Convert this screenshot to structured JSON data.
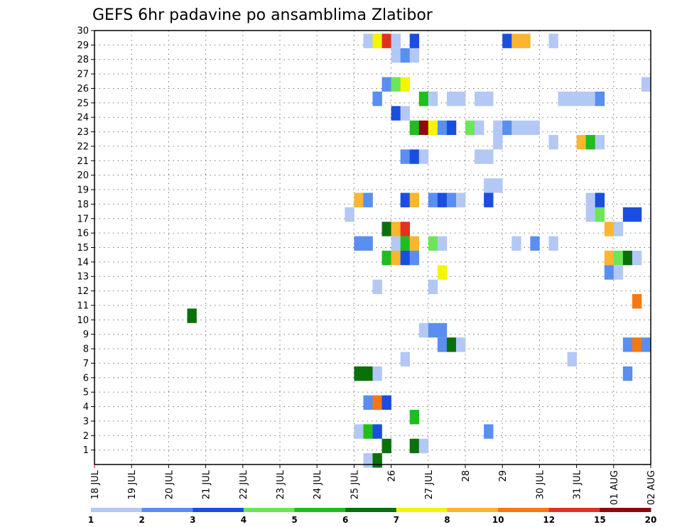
{
  "chart_data": {
    "type": "heatmap",
    "title": "GEFS 6hr padavine po ansamblima Zlatibor",
    "x_tick_labels": [
      "18 JUL",
      "19 JUL",
      "20 JUL",
      "21 JUL",
      "22 JUL",
      "23 JUL",
      "24 JUL",
      "25 JUL",
      "26",
      "27 JUL",
      "28",
      "29",
      "30 JUL",
      "31 JUL",
      "01 AUG",
      "02 AUG"
    ],
    "y_tick_labels": [
      "1",
      "2",
      "3",
      "4",
      "5",
      "6",
      "7",
      "8",
      "9",
      "10",
      "11",
      "12",
      "13",
      "14",
      "15",
      "16",
      "17",
      "18",
      "19",
      "20",
      "21",
      "22",
      "23",
      "24",
      "25",
      "26",
      "27",
      "28",
      "29",
      "30"
    ],
    "xlim_days": [
      0,
      15
    ],
    "ylim": [
      0,
      30
    ],
    "grid": true,
    "legend": {
      "placement": "bottom",
      "colors": [
        "#b3c8f5",
        "#5a8ef0",
        "#1a4ee0",
        "#6de55a",
        "#1fbd1f",
        "#0a700a",
        "#f5f500",
        "#fbb52e",
        "#f57814",
        "#e0321e",
        "#8c0a0a"
      ],
      "labels": [
        "1",
        "2",
        "3",
        "4",
        "5",
        "6",
        "7",
        "8",
        "10",
        "12",
        "15",
        "20"
      ]
    },
    "cells": [
      [
        7.25,
        0,
        "#b3c8f5"
      ],
      [
        7.5,
        0,
        "#0a700a"
      ],
      [
        7.75,
        1,
        "#0a700a"
      ],
      [
        8.5,
        1,
        "#0a700a"
      ],
      [
        8.75,
        1,
        "#b3c8f5"
      ],
      [
        7.0,
        2,
        "#b3c8f5"
      ],
      [
        7.25,
        2,
        "#1fbd1f"
      ],
      [
        7.5,
        2,
        "#1a4ee0"
      ],
      [
        10.5,
        2,
        "#5a8ef0"
      ],
      [
        8.5,
        3,
        "#1fbd1f"
      ],
      [
        7.25,
        4,
        "#5a8ef0"
      ],
      [
        7.5,
        4,
        "#f57814"
      ],
      [
        7.75,
        4,
        "#1a4ee0"
      ],
      [
        7.0,
        6,
        "#0a700a"
      ],
      [
        7.25,
        6,
        "#0a700a"
      ],
      [
        7.5,
        6,
        "#b3c8f5"
      ],
      [
        14.25,
        6,
        "#5a8ef0"
      ],
      [
        8.25,
        7,
        "#b3c8f5"
      ],
      [
        12.75,
        7,
        "#b3c8f5"
      ],
      [
        9.25,
        8,
        "#5a8ef0"
      ],
      [
        9.5,
        8,
        "#0a700a"
      ],
      [
        9.75,
        8,
        "#b3c8f5"
      ],
      [
        14.25,
        8,
        "#5a8ef0"
      ],
      [
        14.5,
        8,
        "#f57814"
      ],
      [
        14.75,
        8,
        "#5a8ef0"
      ],
      [
        8.75,
        9,
        "#b3c8f5"
      ],
      [
        9.0,
        9,
        "#5a8ef0"
      ],
      [
        9.25,
        9,
        "#5a8ef0"
      ],
      [
        2.5,
        10,
        "#0a700a"
      ],
      [
        14.5,
        11,
        "#f57814"
      ],
      [
        7.5,
        12,
        "#b3c8f5"
      ],
      [
        9.0,
        12,
        "#b3c8f5"
      ],
      [
        9.25,
        13,
        "#f5f500"
      ],
      [
        13.75,
        13,
        "#5a8ef0"
      ],
      [
        14.0,
        13,
        "#b3c8f5"
      ],
      [
        7.75,
        14,
        "#1fbd1f"
      ],
      [
        8.0,
        14,
        "#fbb52e"
      ],
      [
        8.25,
        14,
        "#1a4ee0"
      ],
      [
        8.5,
        14,
        "#5a8ef0"
      ],
      [
        13.75,
        14,
        "#fbb52e"
      ],
      [
        14.0,
        14,
        "#6de55a"
      ],
      [
        14.25,
        14,
        "#0a700a"
      ],
      [
        14.5,
        14,
        "#b3c8f5"
      ],
      [
        7.0,
        15,
        "#5a8ef0"
      ],
      [
        7.25,
        15,
        "#5a8ef0"
      ],
      [
        8.0,
        15,
        "#b3c8f5"
      ],
      [
        8.25,
        15,
        "#1fbd1f"
      ],
      [
        8.5,
        15,
        "#fbb52e"
      ],
      [
        9.0,
        15,
        "#6de55a"
      ],
      [
        9.25,
        15,
        "#b3c8f5"
      ],
      [
        11.25,
        15,
        "#b3c8f5"
      ],
      [
        11.75,
        15,
        "#5a8ef0"
      ],
      [
        12.25,
        15,
        "#b3c8f5"
      ],
      [
        7.75,
        16,
        "#0a700a"
      ],
      [
        8.0,
        16,
        "#fbb52e"
      ],
      [
        8.25,
        16,
        "#e0321e"
      ],
      [
        13.75,
        16,
        "#fbb52e"
      ],
      [
        14.0,
        16,
        "#b3c8f5"
      ],
      [
        6.75,
        17,
        "#b3c8f5"
      ],
      [
        13.25,
        17,
        "#b3c8f5"
      ],
      [
        13.5,
        17,
        "#6de55a"
      ],
      [
        14.25,
        17,
        "#1a4ee0"
      ],
      [
        14.5,
        17,
        "#1a4ee0"
      ],
      [
        7.0,
        18,
        "#fbb52e"
      ],
      [
        7.25,
        18,
        "#5a8ef0"
      ],
      [
        8.25,
        18,
        "#1a4ee0"
      ],
      [
        8.5,
        18,
        "#fbb52e"
      ],
      [
        9.0,
        18,
        "#5a8ef0"
      ],
      [
        9.25,
        18,
        "#1a4ee0"
      ],
      [
        9.5,
        18,
        "#5a8ef0"
      ],
      [
        9.75,
        18,
        "#b3c8f5"
      ],
      [
        10.5,
        18,
        "#1a4ee0"
      ],
      [
        13.25,
        18,
        "#b3c8f5"
      ],
      [
        13.5,
        18,
        "#1a4ee0"
      ],
      [
        10.5,
        19,
        "#b3c8f5"
      ],
      [
        10.75,
        19,
        "#b3c8f5"
      ],
      [
        10.25,
        21,
        "#b3c8f5"
      ],
      [
        10.5,
        21,
        "#b3c8f5"
      ],
      [
        8.25,
        21,
        "#5a8ef0"
      ],
      [
        8.5,
        21,
        "#1a4ee0"
      ],
      [
        8.75,
        21,
        "#b3c8f5"
      ],
      [
        10.75,
        22,
        "#b3c8f5"
      ],
      [
        12.25,
        22,
        "#b3c8f5"
      ],
      [
        13.0,
        22,
        "#fbb52e"
      ],
      [
        13.25,
        22,
        "#1fbd1f"
      ],
      [
        13.5,
        22,
        "#b3c8f5"
      ],
      [
        8.5,
        23,
        "#1fbd1f"
      ],
      [
        8.75,
        23,
        "#8c0a0a"
      ],
      [
        9.0,
        23,
        "#f5f500"
      ],
      [
        9.25,
        23,
        "#5a8ef0"
      ],
      [
        9.5,
        23,
        "#1a4ee0"
      ],
      [
        10.0,
        23,
        "#6de55a"
      ],
      [
        10.25,
        23,
        "#b3c8f5"
      ],
      [
        10.75,
        23,
        "#b3c8f5"
      ],
      [
        11.0,
        23,
        "#5a8ef0"
      ],
      [
        11.25,
        23,
        "#b3c8f5"
      ],
      [
        11.5,
        23,
        "#b3c8f5"
      ],
      [
        11.75,
        23,
        "#b3c8f5"
      ],
      [
        8.0,
        24,
        "#1a4ee0"
      ],
      [
        8.25,
        24,
        "#b3c8f5"
      ],
      [
        7.5,
        25,
        "#5a8ef0"
      ],
      [
        8.75,
        25,
        "#1fbd1f"
      ],
      [
        9.0,
        25,
        "#b3c8f5"
      ],
      [
        9.5,
        25,
        "#b3c8f5"
      ],
      [
        9.75,
        25,
        "#b3c8f5"
      ],
      [
        10.25,
        25,
        "#b3c8f5"
      ],
      [
        10.5,
        25,
        "#b3c8f5"
      ],
      [
        12.5,
        25,
        "#b3c8f5"
      ],
      [
        12.75,
        25,
        "#b3c8f5"
      ],
      [
        13.0,
        25,
        "#b3c8f5"
      ],
      [
        13.25,
        25,
        "#b3c8f5"
      ],
      [
        13.5,
        25,
        "#5a8ef0"
      ],
      [
        7.75,
        26,
        "#5a8ef0"
      ],
      [
        8.0,
        26,
        "#6de55a"
      ],
      [
        8.25,
        26,
        "#f5f500"
      ],
      [
        14.75,
        26,
        "#b3c8f5"
      ],
      [
        8.0,
        28,
        "#b3c8f5"
      ],
      [
        8.25,
        28,
        "#5a8ef0"
      ],
      [
        8.5,
        28,
        "#b3c8f5"
      ],
      [
        7.25,
        29,
        "#b3c8f5"
      ],
      [
        7.5,
        29,
        "#f5f500"
      ],
      [
        7.75,
        29,
        "#e0321e"
      ],
      [
        8.0,
        29,
        "#b3c8f5"
      ],
      [
        8.5,
        29,
        "#1a4ee0"
      ],
      [
        11.0,
        29,
        "#1a4ee0"
      ],
      [
        11.25,
        29,
        "#fbb52e"
      ],
      [
        11.5,
        29,
        "#fbb52e"
      ],
      [
        12.25,
        29,
        "#b3c8f5"
      ]
    ]
  }
}
